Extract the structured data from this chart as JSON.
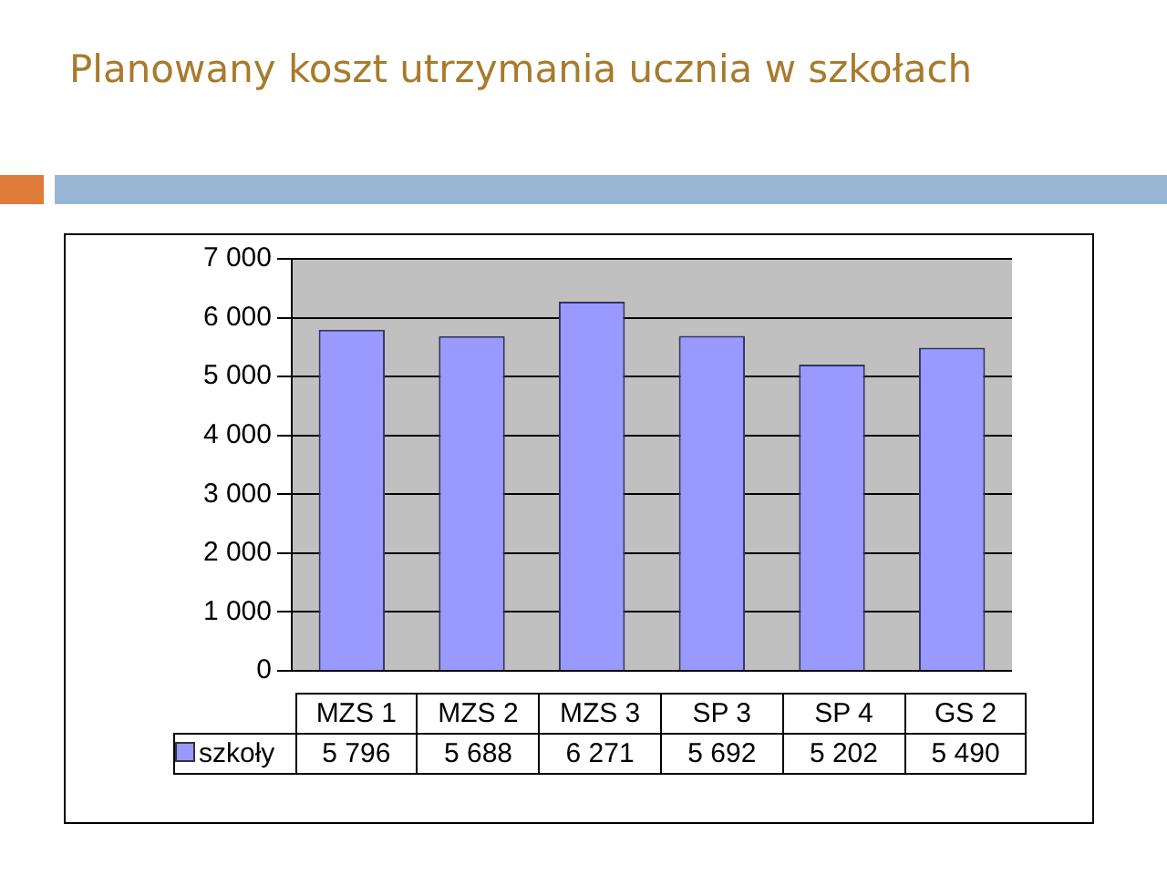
{
  "chart_data": {
    "type": "bar",
    "title": "Planowany koszt utrzymania ucznia w szkołach",
    "categories": [
      "MZS 1",
      "MZS 2",
      "MZS 3",
      "SP 3",
      "SP 4",
      "GS 2"
    ],
    "series": [
      {
        "name": "szkoły",
        "color": "#9999ff",
        "values": [
          5796,
          5688,
          6271,
          5692,
          5202,
          5490
        ],
        "value_labels": [
          "5 796",
          "5 688",
          "6 271",
          "5 692",
          "5 202",
          "5 490"
        ]
      }
    ],
    "ylim": [
      0,
      7000
    ],
    "yticks": [
      {
        "value": 0,
        "label": "0"
      },
      {
        "value": 1000,
        "label": "1 000"
      },
      {
        "value": 2000,
        "label": "2 000"
      },
      {
        "value": 3000,
        "label": "3 000"
      },
      {
        "value": 4000,
        "label": "4 000"
      },
      {
        "value": 5000,
        "label": "5 000"
      },
      {
        "value": 6000,
        "label": "6 000"
      },
      {
        "value": 7000,
        "label": "7 000"
      }
    ],
    "grid": "y",
    "legend": "bottom left"
  }
}
